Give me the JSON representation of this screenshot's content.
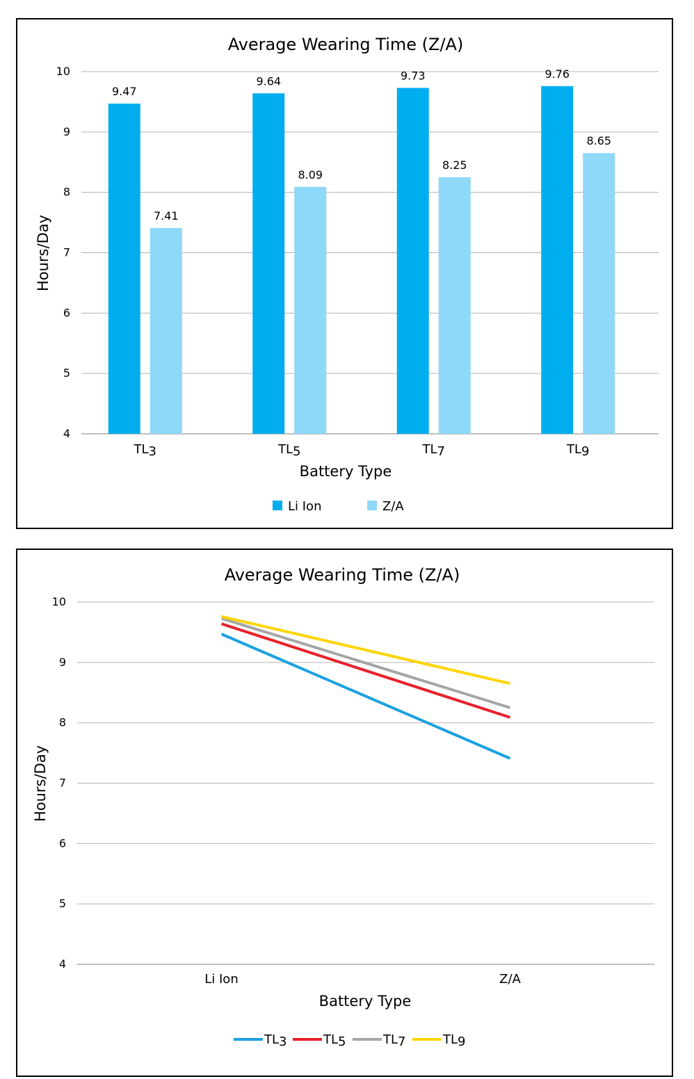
{
  "chart_data": [
    {
      "type": "bar",
      "title": "Average Wearing Time (Z/A)",
      "xlabel": "Battery Type",
      "ylabel": "Hours/Day",
      "ylim": [
        4,
        10
      ],
      "yticks": [
        "4",
        "5",
        "6",
        "7",
        "8",
        "9",
        "10"
      ],
      "categories": [
        "TL3",
        "TL5",
        "TL7",
        "TL9"
      ],
      "series": [
        {
          "name": "Li Ion",
          "color": "#00AEEF",
          "values": [
            9.47,
            9.64,
            9.73,
            9.76
          ],
          "labels": [
            "9.47",
            "9.64",
            "9.73",
            "9.76"
          ]
        },
        {
          "name": "Z/A",
          "color": "#8ED8F8",
          "values": [
            7.41,
            8.09,
            8.25,
            8.65
          ],
          "labels": [
            "7.41",
            "8.09",
            "8.25",
            "8.65"
          ]
        }
      ],
      "grid": true,
      "legend": "bottom"
    },
    {
      "type": "line",
      "title": "Average Wearing Time (Z/A)",
      "xlabel": "Battery Type",
      "ylabel": "Hours/Day",
      "ylim": [
        4,
        10
      ],
      "yticks": [
        "4",
        "5",
        "6",
        "7",
        "8",
        "9",
        "10"
      ],
      "categories": [
        "Li Ion",
        "Z/A"
      ],
      "series": [
        {
          "name": "TL3",
          "color": "#1BA1E2",
          "values": [
            9.47,
            7.41
          ]
        },
        {
          "name": "TL5",
          "color": "#E8202A",
          "values": [
            9.64,
            8.09
          ]
        },
        {
          "name": "TL7",
          "color": "#A6A6A6",
          "values": [
            9.73,
            8.25
          ]
        },
        {
          "name": "TL9",
          "color": "#FFD500",
          "values": [
            9.76,
            8.65
          ]
        }
      ],
      "grid": true,
      "legend": "bottom"
    }
  ]
}
